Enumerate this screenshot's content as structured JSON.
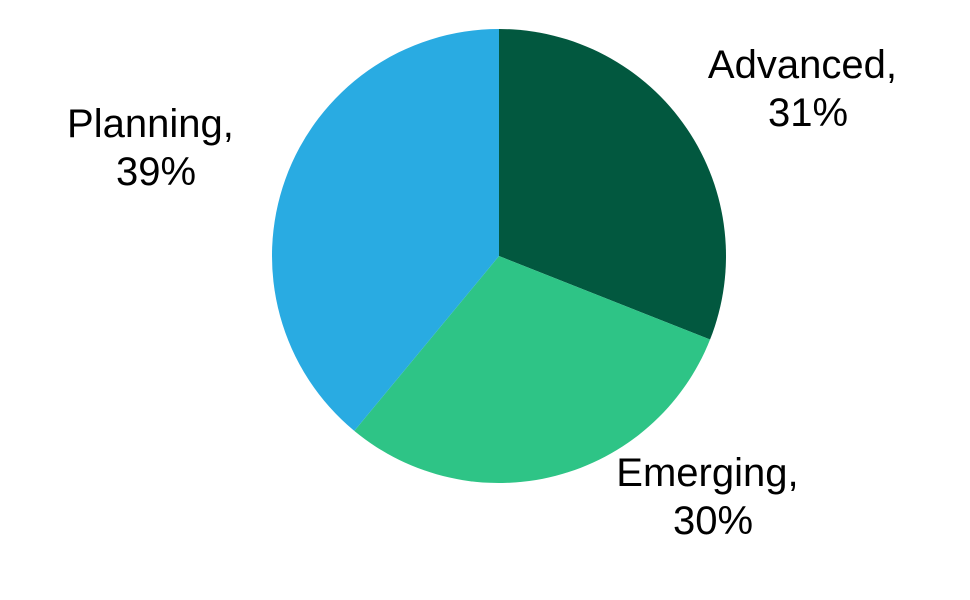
{
  "chart_data": {
    "type": "pie",
    "start_angle_deg": 0,
    "direction": "clockwise",
    "slices": [
      {
        "label": "Advanced",
        "value": 31,
        "display": "31%",
        "color": "#02583F"
      },
      {
        "label": "Emerging",
        "value": 30,
        "display": "30%",
        "color": "#2EC486"
      },
      {
        "label": "Planning",
        "value": 39,
        "display": "39%",
        "color": "#29ABE2"
      }
    ],
    "legend": "none",
    "data_labels": "outside"
  }
}
